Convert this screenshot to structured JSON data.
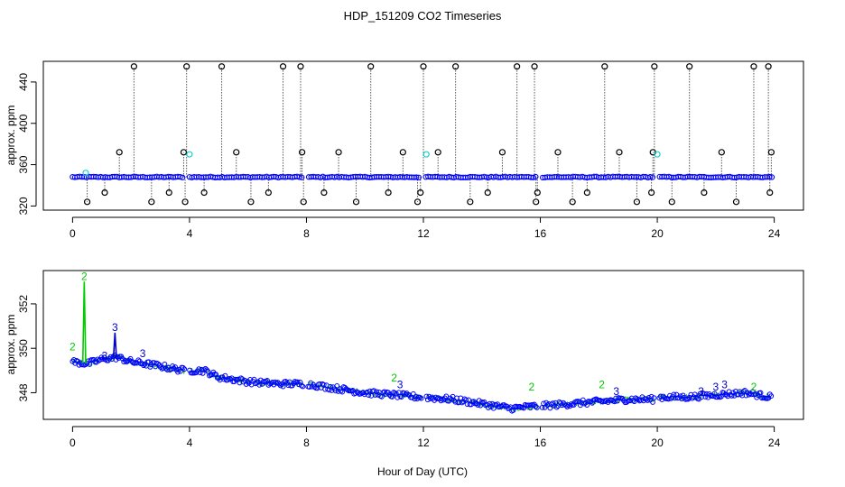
{
  "chart_data": [
    {
      "type": "scatter",
      "title": "HDP_151209  CO2 Timeseries",
      "ylabel": "approx. ppm",
      "xlabel": "",
      "xlim": [
        -1,
        25
      ],
      "ylim": [
        316,
        460
      ],
      "x_ticks": [
        0,
        4,
        8,
        12,
        16,
        20,
        24
      ],
      "y_ticks": [
        320,
        360,
        400,
        440
      ],
      "baseline": 348,
      "high_value": 455,
      "level_values": [
        324,
        333,
        372
      ],
      "spike_hours": [
        2.1,
        3.9,
        5.1,
        7.2,
        7.8,
        10.2,
        12.0,
        13.1,
        15.2,
        15.8,
        18.2,
        19.9,
        21.1,
        23.3,
        23.8
      ],
      "spike_level_hours": [
        0.5,
        1.1,
        1.6,
        2.7,
        3.3,
        3.8,
        3.85,
        4.5,
        5.6,
        6.1,
        6.7,
        7.85,
        7.9,
        8.6,
        9.1,
        9.7,
        10.8,
        11.3,
        11.8,
        11.9,
        12.5,
        13.6,
        14.2,
        14.7,
        15.85,
        15.9,
        16.6,
        17.1,
        17.6,
        18.7,
        19.3,
        19.8,
        19.85,
        20.5,
        21.6,
        22.2,
        22.7,
        23.85,
        23.9
      ],
      "series": [
        {
          "name": "1",
          "color": "#0000ff"
        },
        {
          "name": "2",
          "color": "#00dd00"
        },
        {
          "name": "3",
          "color": "#0000cc"
        },
        {
          "name": "flags",
          "color": "#000000"
        },
        {
          "name": "cyan",
          "color": "#00cccc"
        }
      ],
      "legend": ""
    },
    {
      "type": "scatter",
      "title": "",
      "ylabel": "approx. ppm",
      "xlabel": "Hour of Day (UTC)",
      "xlim": [
        -1,
        25
      ],
      "ylim": [
        346.8,
        353.5
      ],
      "x_ticks": [
        0,
        4,
        8,
        12,
        16,
        20,
        24
      ],
      "y_ticks": [
        348,
        350,
        352
      ],
      "trend_points": [
        [
          0,
          349.4
        ],
        [
          0.5,
          349.3
        ],
        [
          1,
          349.5
        ],
        [
          1.5,
          349.6
        ],
        [
          2,
          349.4
        ],
        [
          3,
          349.2
        ],
        [
          3.8,
          349.0
        ],
        [
          4,
          349.0
        ],
        [
          4.5,
          349.0
        ],
        [
          5,
          348.7
        ],
        [
          6,
          348.5
        ],
        [
          7,
          348.4
        ],
        [
          7.8,
          348.4
        ],
        [
          8,
          348.4
        ],
        [
          9,
          348.2
        ],
        [
          10,
          348.0
        ],
        [
          11,
          347.9
        ],
        [
          11.9,
          347.8
        ],
        [
          12,
          347.8
        ],
        [
          13,
          347.7
        ],
        [
          14,
          347.5
        ],
        [
          15,
          347.3
        ],
        [
          15.9,
          347.4
        ],
        [
          16,
          347.4
        ],
        [
          17,
          347.5
        ],
        [
          18,
          347.6
        ],
        [
          19,
          347.7
        ],
        [
          19.9,
          347.7
        ],
        [
          20,
          347.8
        ],
        [
          21,
          347.8
        ],
        [
          22,
          347.9
        ],
        [
          23,
          348.0
        ],
        [
          23.9,
          347.8
        ]
      ],
      "gaps": [
        [
          3.85,
          4.0
        ],
        [
          7.9,
          8.05
        ],
        [
          11.95,
          12.1
        ],
        [
          15.9,
          16.05
        ],
        [
          19.9,
          20.05
        ]
      ],
      "spikes": [
        {
          "x": 0.4,
          "y": 353.0,
          "label": "2",
          "series": "2"
        },
        {
          "x": 1.45,
          "y": 350.7,
          "label": "3",
          "series": "3"
        }
      ],
      "labels": [
        {
          "x": 0.0,
          "y": 349.9,
          "text": "2",
          "series": "2"
        },
        {
          "x": 2.4,
          "y": 349.6,
          "text": "3",
          "series": "3"
        },
        {
          "x": 1.1,
          "y": 349.5,
          "text": "3",
          "series": "3"
        },
        {
          "x": 11.0,
          "y": 348.5,
          "text": "2",
          "series": "2"
        },
        {
          "x": 11.2,
          "y": 348.2,
          "text": "3",
          "series": "3"
        },
        {
          "x": 15.7,
          "y": 348.1,
          "text": "2",
          "series": "2"
        },
        {
          "x": 18.1,
          "y": 348.2,
          "text": "2",
          "series": "2"
        },
        {
          "x": 18.6,
          "y": 347.9,
          "text": "3",
          "series": "3"
        },
        {
          "x": 21.5,
          "y": 347.9,
          "text": "3",
          "series": "3"
        },
        {
          "x": 22.0,
          "y": 348.1,
          "text": "3",
          "series": "3"
        },
        {
          "x": 22.3,
          "y": 348.2,
          "text": "3",
          "series": "3"
        },
        {
          "x": 23.3,
          "y": 348.1,
          "text": "2",
          "series": "2"
        }
      ],
      "noise_ppm": 0.13,
      "series": [
        {
          "name": "1",
          "color": "#0000ff"
        },
        {
          "name": "2",
          "color": "#00cc00"
        },
        {
          "name": "3",
          "color": "#0000cc"
        }
      ],
      "legend": ""
    }
  ]
}
